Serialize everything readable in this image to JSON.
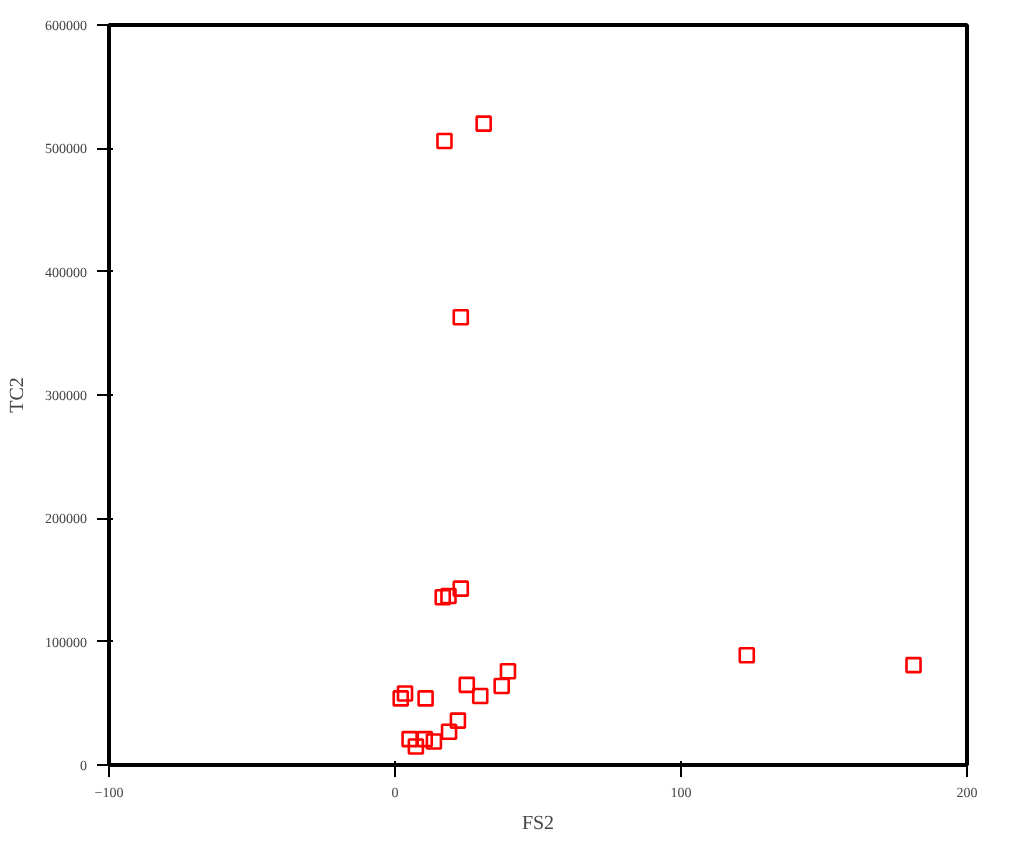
{
  "chart_data": {
    "type": "scatter",
    "xlabel": "FS2",
    "ylabel": "TC2",
    "x": [
      31,
      17.3,
      23,
      16.7,
      18.7,
      23,
      2,
      3.5,
      10.7,
      25.1,
      29.8,
      37.3,
      39.5,
      22,
      18.9,
      5.1,
      7.3,
      10.4,
      13.6,
      123,
      181.3
    ],
    "series": [
      {
        "color": "#ff0000",
        "values": [
          520000,
          506000,
          363000,
          136000,
          137000,
          143000,
          54000,
          58000,
          54000,
          65000,
          56000,
          64000,
          76000,
          36000,
          27000,
          21000,
          15000,
          21000,
          19000,
          89000,
          81000
        ]
      }
    ],
    "xlim": [
      -100,
      200
    ],
    "xticks": [
      -100,
      0,
      100,
      200
    ],
    "ylim": [
      0,
      600000
    ],
    "yticks": [
      0,
      100000,
      200000,
      300000,
      400000,
      500000,
      600000
    ],
    "marker": "square",
    "grid": false
  }
}
